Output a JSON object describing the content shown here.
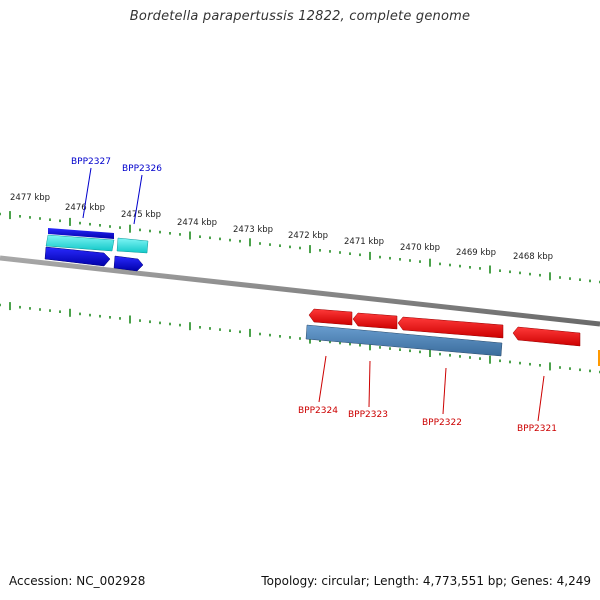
{
  "title": "Bordetella parapertussis 12822, complete genome",
  "footer": {
    "accession": "Accession: NC_002928",
    "summary": "Topology: circular; Length: 4,773,551 bp; Genes: 4,249"
  },
  "scale": {
    "unit": "kbp",
    "labels": [
      "2477 kbp",
      "2476 kbp",
      "2475 kbp",
      "2474 kbp",
      "2473 kbp",
      "2472 kbp",
      "2471 kbp",
      "2470 kbp",
      "2469 kbp",
      "2468 kbp"
    ]
  },
  "genes": {
    "forward": [
      {
        "label": "BPP2327",
        "color": "#0000cc"
      },
      {
        "label": "BPP2326",
        "color": "#0000cc"
      }
    ],
    "reverse": [
      {
        "label": "BPP2324",
        "color": "#cc0000"
      },
      {
        "label": "BPP2323",
        "color": "#cc0000"
      },
      {
        "label": "BPP2322",
        "color": "#cc0000"
      },
      {
        "label": "BPP2321",
        "color": "#cc0000"
      }
    ]
  },
  "colors": {
    "backbone": "#808080",
    "tick": "#1e8a1e",
    "cds_forward": "#1010dd",
    "gene_forward": "#22dddd",
    "cds_reverse": "#ee1111",
    "gene_reverse": "#4682b4",
    "accent": "#ff9900"
  }
}
